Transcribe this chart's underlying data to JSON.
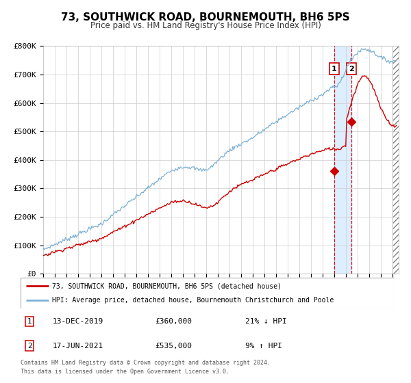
{
  "title": "73, SOUTHWICK ROAD, BOURNEMOUTH, BH6 5PS",
  "subtitle": "Price paid vs. HM Land Registry's House Price Index (HPI)",
  "xlim": [
    1995,
    2025.5
  ],
  "ylim": [
    0,
    800000
  ],
  "yticks": [
    0,
    100000,
    200000,
    300000,
    400000,
    500000,
    600000,
    700000,
    800000
  ],
  "ytick_labels": [
    "£0",
    "£100K",
    "£200K",
    "£300K",
    "£400K",
    "£500K",
    "£600K",
    "£700K",
    "£800K"
  ],
  "sale1_date": 2019.96,
  "sale1_price": 360000,
  "sale1_label": "13-DEC-2019",
  "sale1_pct": "21% ↓ HPI",
  "sale2_date": 2021.46,
  "sale2_price": 535000,
  "sale2_label": "17-JUN-2021",
  "sale2_pct": "9% ↑ HPI",
  "hatch_start": 2025.0,
  "property_color": "#cc0000",
  "hpi_color": "#7ab0d4",
  "shaded_region_color": "#ddeeff",
  "legend_property": "73, SOUTHWICK ROAD, BOURNEMOUTH, BH6 5PS (detached house)",
  "legend_hpi": "HPI: Average price, detached house, Bournemouth Christchurch and Poole",
  "footer1": "Contains HM Land Registry data © Crown copyright and database right 2024.",
  "footer2": "This data is licensed under the Open Government Licence v3.0."
}
